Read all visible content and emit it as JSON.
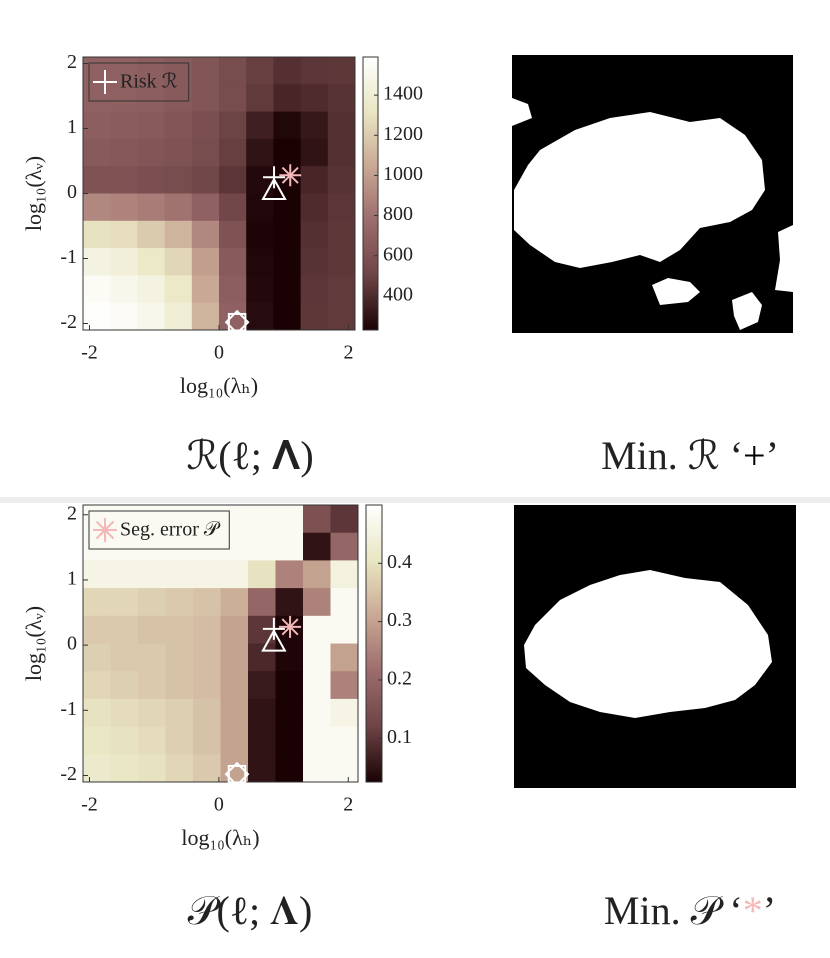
{
  "chart_data": [
    {
      "type": "heatmap",
      "legend": "Risk ℛ",
      "legend_marker": 0,
      "xlabel": "log₁₀(λₕ)",
      "ylabel": "log₁₀(λᵥ)",
      "caption": "ℛ(ℓ; 𝚲)",
      "mask_caption": [
        "Min. ℛ ‘",
        "+",
        "’"
      ],
      "mask_caption_color": "#000000",
      "xlim": [
        -2.1,
        2.1
      ],
      "ylim": [
        -2.1,
        2.1
      ],
      "xticks": [
        -2,
        0,
        2
      ],
      "yticks": [
        -2,
        -1,
        0,
        1,
        2
      ],
      "clim": [
        230,
        1590
      ],
      "cticks": [
        400,
        600,
        800,
        1000,
        1200,
        1400
      ],
      "colormap": [
        "#1a0204",
        "#6e4446",
        "#9c6c6c",
        "#c9a894",
        "#e9e6c2",
        "#ffffff"
      ],
      "z": [
        [
          700,
          700,
          680,
          650,
          620,
          560,
          480,
          420,
          440,
          450
        ],
        [
          700,
          690,
          680,
          650,
          620,
          560,
          460,
          380,
          400,
          430
        ],
        [
          680,
          670,
          650,
          620,
          580,
          500,
          350,
          250,
          320,
          420
        ],
        [
          650,
          640,
          620,
          600,
          560,
          480,
          300,
          230,
          300,
          420
        ],
        [
          600,
          600,
          580,
          560,
          520,
          440,
          260,
          220,
          380,
          430
        ],
        [
          900,
          880,
          850,
          800,
          700,
          520,
          250,
          220,
          400,
          440
        ],
        [
          1300,
          1280,
          1200,
          1100,
          900,
          600,
          240,
          210,
          420,
          450
        ],
        [
          1450,
          1420,
          1350,
          1250,
          1000,
          650,
          250,
          210,
          430,
          450
        ],
        [
          1550,
          1500,
          1450,
          1350,
          1050,
          680,
          260,
          210,
          440,
          460
        ],
        [
          1580,
          1550,
          1500,
          1400,
          1100,
          700,
          270,
          215,
          450,
          460
        ]
      ],
      "markers": [
        {
          "symbol": "plus",
          "x": 0.85,
          "y": 0.25,
          "color": "#ffffff"
        },
        {
          "symbol": "asterisk",
          "x": 1.1,
          "y": 0.28,
          "color": "#f4b8b8"
        },
        {
          "symbol": "triangle",
          "x": 0.85,
          "y": 0.05,
          "color": "#ffffff"
        },
        {
          "symbol": "diamond-square",
          "x": 0.28,
          "y": -1.98,
          "color": "#ffffff"
        }
      ]
    },
    {
      "type": "heatmap",
      "legend": "Seg. error 𝒫",
      "legend_marker": 1,
      "xlabel": "log₁₀(λₕ)",
      "ylabel": "log₁₀(λᵥ)",
      "caption": "𝒫(ℓ; 𝚲)",
      "mask_caption": [
        "Min. 𝒫 ‘",
        "*",
        "’"
      ],
      "mask_caption_color": "#f4b8b8",
      "xlim": [
        -2.1,
        2.15
      ],
      "ylim": [
        -2.1,
        2.15
      ],
      "xticks": [
        -2,
        0,
        2
      ],
      "yticks": [
        -2,
        -1,
        0,
        1,
        2
      ],
      "clim": [
        0.025,
        0.5
      ],
      "cticks": [
        0.1,
        0.2,
        0.3,
        0.4
      ],
      "colormap": [
        "#1a0204",
        "#6e4446",
        "#9c6c6c",
        "#c9a894",
        "#e9e6c2",
        "#ffffff"
      ],
      "z": [
        [
          0.48,
          0.48,
          0.48,
          0.48,
          0.48,
          0.48,
          0.48,
          0.48,
          0.15,
          0.1
        ],
        [
          0.48,
          0.48,
          0.48,
          0.48,
          0.48,
          0.48,
          0.48,
          0.48,
          0.05,
          0.2
        ],
        [
          0.46,
          0.46,
          0.46,
          0.46,
          0.46,
          0.46,
          0.4,
          0.25,
          0.3,
          0.45
        ],
        [
          0.38,
          0.38,
          0.37,
          0.36,
          0.35,
          0.32,
          0.2,
          0.05,
          0.25,
          0.48
        ],
        [
          0.36,
          0.36,
          0.35,
          0.35,
          0.34,
          0.3,
          0.1,
          0.03,
          0.48,
          0.48
        ],
        [
          0.37,
          0.36,
          0.36,
          0.35,
          0.34,
          0.3,
          0.08,
          0.03,
          0.48,
          0.3
        ],
        [
          0.38,
          0.37,
          0.36,
          0.35,
          0.34,
          0.3,
          0.06,
          0.02,
          0.48,
          0.25
        ],
        [
          0.4,
          0.39,
          0.38,
          0.37,
          0.35,
          0.3,
          0.05,
          0.02,
          0.48,
          0.46
        ],
        [
          0.41,
          0.4,
          0.39,
          0.37,
          0.35,
          0.3,
          0.05,
          0.02,
          0.48,
          0.48
        ],
        [
          0.42,
          0.41,
          0.4,
          0.38,
          0.36,
          0.3,
          0.05,
          0.02,
          0.48,
          0.48
        ]
      ],
      "markers": [
        {
          "symbol": "plus",
          "x": 0.85,
          "y": 0.25,
          "color": "#ffffff"
        },
        {
          "symbol": "asterisk",
          "x": 1.1,
          "y": 0.28,
          "color": "#f4b8b8"
        },
        {
          "symbol": "triangle",
          "x": 0.85,
          "y": 0.05,
          "color": "#ffffff"
        },
        {
          "symbol": "diamond-square",
          "x": 0.28,
          "y": -1.98,
          "color": "#ffffff"
        }
      ]
    }
  ]
}
